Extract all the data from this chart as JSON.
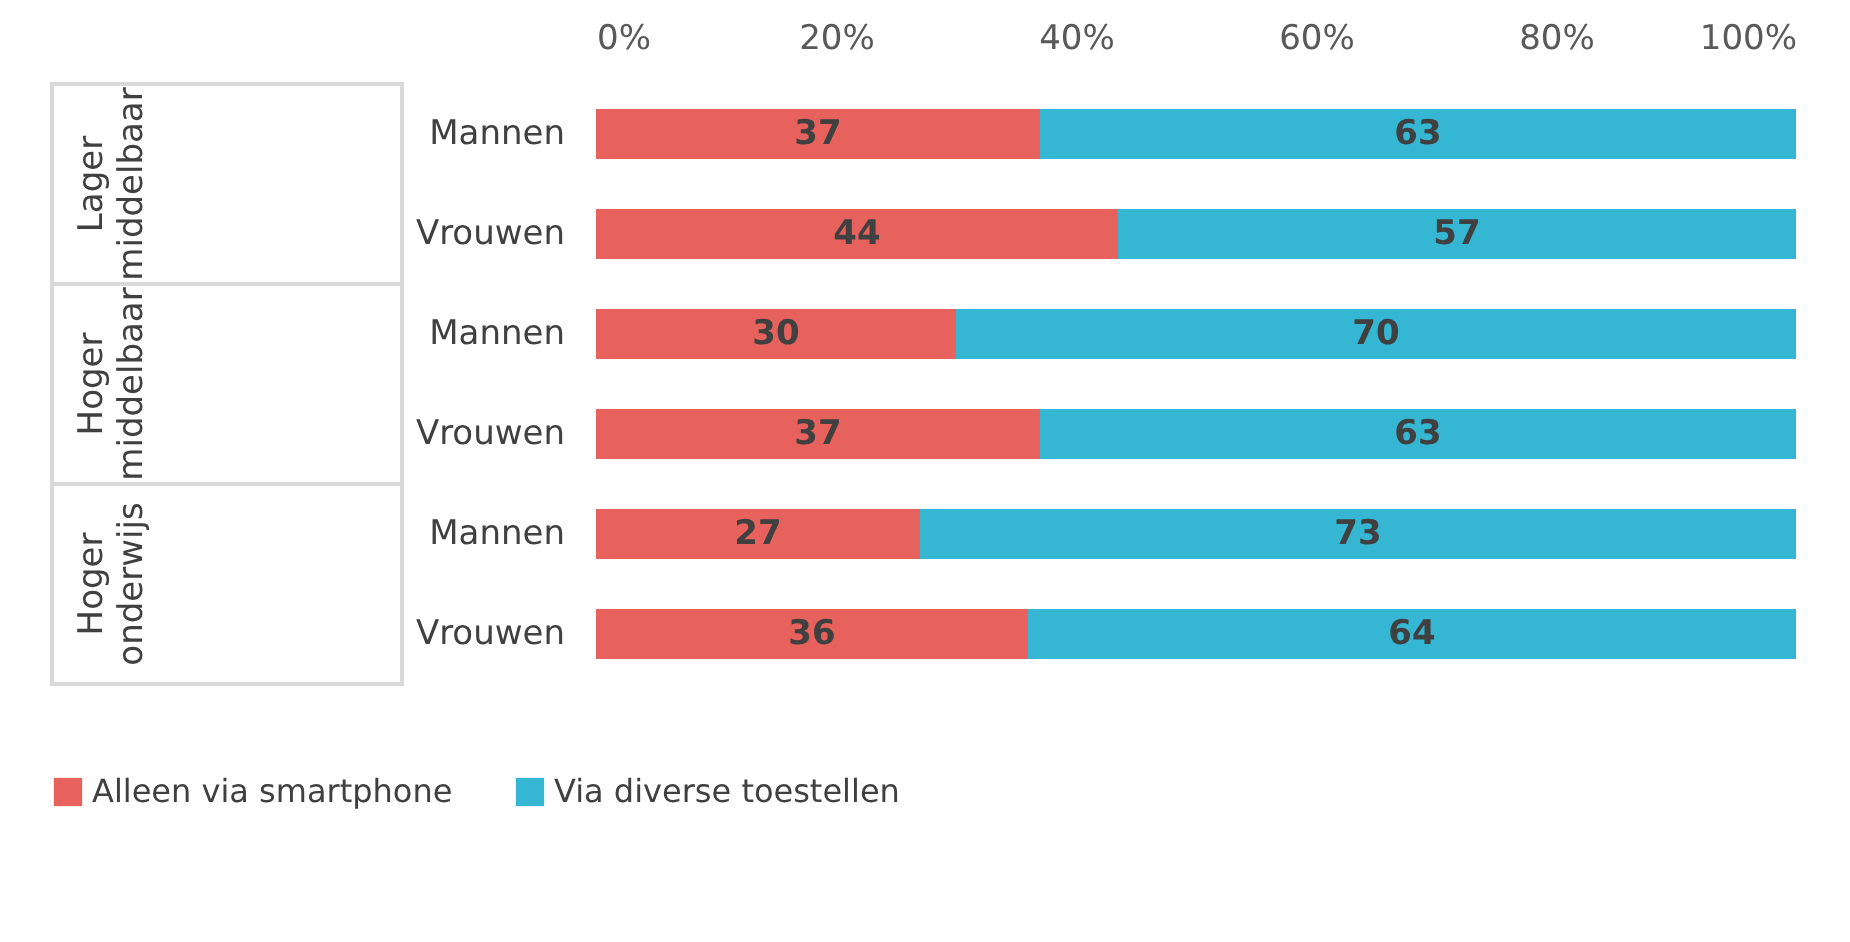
{
  "chart_data": {
    "type": "bar",
    "orientation": "horizontal",
    "stacked": true,
    "categories": [
      "Mannen",
      "Vrouwen",
      "Mannen",
      "Vrouwen",
      "Mannen",
      "Vrouwen"
    ],
    "xlim": [
      0,
      100
    ],
    "xticks": [
      {
        "value": 0,
        "label": "0%"
      },
      {
        "value": 20,
        "label": "20%"
      },
      {
        "value": 40,
        "label": "40%"
      },
      {
        "value": 60,
        "label": "60%"
      },
      {
        "value": 80,
        "label": "80%"
      },
      {
        "value": 100,
        "label": "100%"
      }
    ],
    "legend": "bottom",
    "annotations": [
      "Lager middelbaar",
      "Hoger middelbaar",
      "Hoger onderwijs"
    ],
    "series": [
      {
        "name": "Alleen via smartphone",
        "color": "#e8625d",
        "values": [
          37,
          43.5,
          30,
          37,
          27,
          36
        ],
        "value_labels": [
          "37",
          "44",
          "30",
          "37",
          "27",
          "36"
        ]
      },
      {
        "name": "Via diverse toestellen",
        "color": "#35b6d3",
        "values": [
          63,
          56.5,
          70,
          63,
          73,
          64
        ],
        "value_labels": [
          "63",
          "57",
          "70",
          "63",
          "73",
          "64"
        ]
      }
    ]
  }
}
